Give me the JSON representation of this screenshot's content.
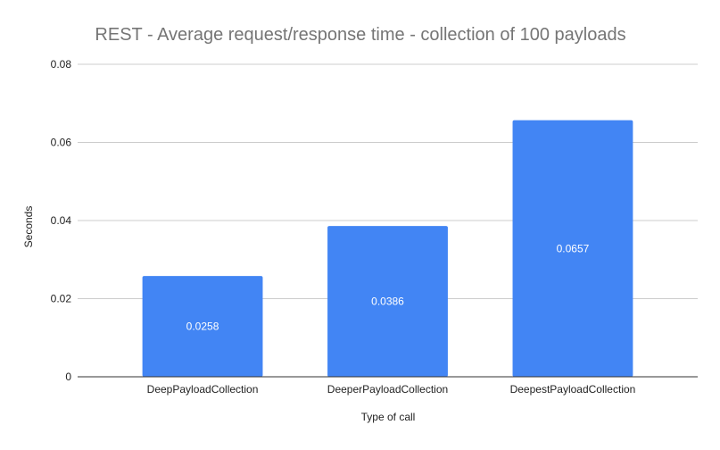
{
  "chart_data": {
    "type": "bar",
    "title": "REST - Average request/response time - collection of 100 payloads",
    "xlabel": "Type of call",
    "ylabel": "Seconds",
    "categories": [
      "DeepPayloadCollection",
      "DeeperPayloadCollection",
      "DeepestPayloadCollection"
    ],
    "values": [
      0.0258,
      0.0386,
      0.0657
    ],
    "data_labels": [
      "0.0258",
      "0.0386",
      "0.0657"
    ],
    "ylim": [
      0,
      0.08
    ],
    "yticks": [
      0,
      0.02,
      0.04,
      0.06,
      0.08
    ],
    "ytick_labels": [
      "0",
      "0.02",
      "0.04",
      "0.06",
      "0.08"
    ],
    "grid": true,
    "legend": "none",
    "colors": {
      "bar": "#4285f4",
      "grid": "#cccccc",
      "axis": "#333333",
      "title": "#757575",
      "text": "#222222",
      "data_label": "#ffffff"
    }
  }
}
